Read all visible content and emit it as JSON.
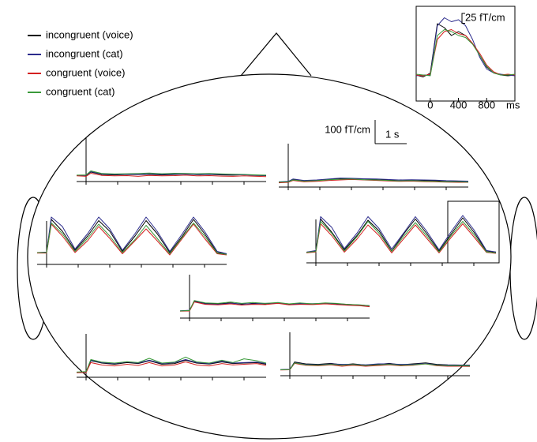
{
  "scale_bars": [
    {
      "value": 100,
      "label": "100 fT/cm"
    },
    {
      "value": 1,
      "label": "1 s"
    }
  ],
  "chart_data": [
    {
      "type": "line",
      "x": [
        -200,
        -100,
        0,
        100,
        200,
        300,
        400,
        500,
        600,
        700,
        800,
        900,
        1000,
        1100,
        1200
      ],
      "xlim": [
        -200,
        1200
      ],
      "xticks": [
        0,
        400,
        800
      ],
      "xlabel": "ms",
      "ylim": [
        0,
        200
      ],
      "scale_bar": {
        "value": 25,
        "label": "25 fT/cm"
      },
      "series": [
        {
          "name": "incongruent (voice)",
          "color": "#000000",
          "values": [
            50,
            45,
            55,
            180,
            170,
            150,
            160,
            150,
            130,
            100,
            70,
            55,
            50,
            48,
            50
          ]
        },
        {
          "name": "incongruent (cat)",
          "color": "#2b2b8c",
          "values": [
            48,
            50,
            50,
            175,
            195,
            185,
            190,
            175,
            140,
            95,
            65,
            55,
            52,
            50,
            48
          ]
        },
        {
          "name": "congruent (voice)",
          "color": "#d42020",
          "values": [
            50,
            48,
            52,
            140,
            160,
            165,
            155,
            150,
            130,
            105,
            75,
            58,
            50,
            52,
            50
          ]
        },
        {
          "name": "congruent (cat)",
          "color": "#3a9a3a",
          "values": [
            52,
            50,
            48,
            150,
            165,
            160,
            150,
            145,
            128,
            100,
            72,
            55,
            50,
            50,
            52
          ]
        }
      ]
    },
    {
      "type": "line",
      "x": [
        -0.3,
        0,
        0.15,
        0.5,
        0.9,
        1.3,
        1.65,
        2,
        2.4,
        2.8,
        3.15,
        3.5,
        3.9,
        4.3,
        4.65,
        5,
        5.4,
        5.7
      ],
      "xlim": [
        -0.3,
        5.7
      ],
      "xticks": [
        0,
        1,
        2,
        3,
        4,
        5
      ],
      "ylim": [
        0,
        250
      ],
      "series": [
        {
          "color": "#000000",
          "values": [
            25,
            26,
            40,
            30,
            28,
            30,
            29,
            31,
            28,
            30,
            32,
            29,
            30,
            28,
            27,
            29,
            26,
            25
          ]
        },
        {
          "color": "#2b2b8c",
          "values": [
            26,
            27,
            42,
            32,
            30,
            31,
            30,
            33,
            30,
            32,
            31,
            30,
            31,
            30,
            29,
            28,
            27,
            26
          ]
        },
        {
          "color": "#d42020",
          "values": [
            24,
            22,
            35,
            26,
            24,
            25,
            22,
            26,
            24,
            25,
            27,
            24,
            25,
            23,
            22,
            24,
            22,
            21
          ]
        },
        {
          "color": "#3a9a3a",
          "values": [
            27,
            28,
            45,
            34,
            32,
            33,
            34,
            36,
            33,
            35,
            34,
            33,
            34,
            32,
            31,
            30,
            28,
            27
          ]
        }
      ]
    },
    {
      "type": "line",
      "x": [
        -0.3,
        0,
        0.15,
        0.5,
        0.9,
        1.3,
        1.65,
        2,
        2.4,
        2.8,
        3.15,
        3.5,
        3.9,
        4.3,
        4.65,
        5,
        5.4,
        5.7
      ],
      "xlim": [
        -0.3,
        5.7
      ],
      "xticks": [
        0,
        1,
        2,
        3,
        4,
        5
      ],
      "ylim": [
        0,
        250
      ],
      "series": [
        {
          "color": "#000000",
          "values": [
            20,
            22,
            32,
            26,
            28,
            32,
            35,
            36,
            34,
            33,
            30,
            29,
            30,
            28,
            27,
            26,
            25,
            24
          ]
        },
        {
          "color": "#2b2b8c",
          "values": [
            22,
            24,
            34,
            28,
            30,
            34,
            38,
            37,
            35,
            34,
            32,
            30,
            31,
            30,
            29,
            27,
            26,
            25
          ]
        },
        {
          "color": "#d42020",
          "values": [
            18,
            20,
            28,
            22,
            24,
            28,
            30,
            32,
            30,
            28,
            26,
            24,
            25,
            23,
            22,
            21,
            20,
            20
          ]
        },
        {
          "color": "#3a9a3a",
          "values": [
            21,
            22,
            30,
            25,
            27,
            31,
            33,
            34,
            31,
            30,
            28,
            26,
            27,
            25,
            24,
            22,
            22,
            21
          ]
        }
      ]
    },
    {
      "type": "line",
      "x": [
        -0.3,
        0,
        0.15,
        0.5,
        0.9,
        1.3,
        1.65,
        2,
        2.4,
        2.8,
        3.15,
        3.5,
        3.9,
        4.3,
        4.65,
        5,
        5.4,
        5.7
      ],
      "xlim": [
        -0.3,
        5.7
      ],
      "xticks": [
        0,
        1,
        2,
        3,
        4,
        5
      ],
      "ylim": [
        0,
        250
      ],
      "series": [
        {
          "color": "#000000",
          "values": [
            50,
            50,
            190,
            140,
            60,
            120,
            185,
            140,
            55,
            120,
            185,
            130,
            50,
            120,
            190,
            130,
            50,
            45
          ]
        },
        {
          "color": "#2b2b8c",
          "values": [
            50,
            52,
            200,
            160,
            65,
            130,
            200,
            150,
            60,
            130,
            200,
            140,
            55,
            130,
            200,
            140,
            55,
            45
          ]
        },
        {
          "color": "#d42020",
          "values": [
            48,
            48,
            170,
            120,
            50,
            100,
            160,
            110,
            45,
            100,
            150,
            100,
            40,
            110,
            170,
            110,
            45,
            40
          ]
        },
        {
          "color": "#3a9a3a",
          "values": [
            50,
            50,
            175,
            130,
            55,
            110,
            170,
            120,
            50,
            105,
            165,
            110,
            45,
            115,
            175,
            120,
            48,
            42
          ]
        }
      ]
    },
    {
      "type": "line",
      "x": [
        -0.3,
        0,
        0.15,
        0.5,
        0.9,
        1.3,
        1.65,
        2,
        2.4,
        2.8,
        3.15,
        3.5,
        3.9,
        4.3,
        4.65,
        5,
        5.4,
        5.7
      ],
      "xlim": [
        -0.3,
        5.7
      ],
      "xticks": [
        0,
        1,
        2,
        3,
        4,
        5
      ],
      "ylim": [
        0,
        250
      ],
      "series": [
        {
          "color": "#000000",
          "values": [
            45,
            50,
            185,
            130,
            55,
            115,
            180,
            135,
            50,
            125,
            185,
            125,
            50,
            125,
            190,
            130,
            50,
            45
          ]
        },
        {
          "color": "#2b2b8c",
          "values": [
            45,
            52,
            195,
            150,
            60,
            125,
            195,
            145,
            58,
            130,
            195,
            135,
            55,
            135,
            200,
            140,
            52,
            46
          ]
        },
        {
          "color": "#d42020",
          "values": [
            42,
            46,
            165,
            115,
            45,
            100,
            160,
            115,
            42,
            105,
            160,
            105,
            42,
            110,
            165,
            110,
            44,
            40
          ]
        },
        {
          "color": "#3a9a3a",
          "values": [
            44,
            48,
            175,
            125,
            50,
            110,
            175,
            125,
            48,
            115,
            170,
            115,
            46,
            118,
            175,
            120,
            46,
            42
          ]
        }
      ]
    },
    {
      "type": "line",
      "x": [
        -0.3,
        0,
        0.15,
        0.5,
        0.9,
        1.3,
        1.65,
        2,
        2.4,
        2.8,
        3.15,
        3.5,
        3.9,
        4.3,
        4.65,
        5,
        5.4,
        5.7
      ],
      "xlim": [
        -0.3,
        5.7
      ],
      "xticks": [
        0,
        1,
        2,
        3,
        4,
        5
      ],
      "ylim": [
        0,
        250
      ],
      "series": [
        {
          "color": "#000000",
          "values": [
            30,
            32,
            72,
            62,
            60,
            64,
            58,
            62,
            60,
            65,
            58,
            62,
            59,
            63,
            60,
            58,
            55,
            52
          ]
        },
        {
          "color": "#2b2b8c",
          "values": [
            31,
            33,
            70,
            60,
            58,
            62,
            60,
            60,
            62,
            63,
            60,
            60,
            61,
            62,
            58,
            56,
            54,
            50
          ]
        },
        {
          "color": "#d42020",
          "values": [
            29,
            30,
            68,
            58,
            56,
            60,
            55,
            58,
            57,
            62,
            56,
            58,
            57,
            60,
            57,
            54,
            52,
            48
          ]
        },
        {
          "color": "#3a9a3a",
          "values": [
            30,
            32,
            74,
            64,
            62,
            68,
            62,
            66,
            62,
            66,
            60,
            64,
            60,
            64,
            62,
            58,
            56,
            52
          ]
        }
      ]
    },
    {
      "type": "line",
      "x": [
        -0.3,
        0,
        0.15,
        0.5,
        0.9,
        1.3,
        1.65,
        2,
        2.4,
        2.8,
        3.15,
        3.5,
        3.9,
        4.3,
        4.65,
        5,
        5.4,
        5.7
      ],
      "xlim": [
        -0.3,
        5.7
      ],
      "xticks": [
        0,
        1,
        2,
        3,
        4,
        5
      ],
      "ylim": [
        0,
        250
      ],
      "series": [
        {
          "color": "#000000",
          "values": [
            20,
            22,
            70,
            60,
            55,
            62,
            58,
            70,
            55,
            58,
            72,
            60,
            56,
            65,
            58,
            60,
            62,
            55
          ]
        },
        {
          "color": "#2b2b8c",
          "values": [
            21,
            23,
            72,
            62,
            58,
            65,
            60,
            72,
            58,
            62,
            75,
            62,
            58,
            68,
            60,
            62,
            64,
            58
          ]
        },
        {
          "color": "#d42020",
          "values": [
            19,
            20,
            62,
            52,
            48,
            55,
            50,
            62,
            48,
            52,
            65,
            52,
            48,
            58,
            52,
            55,
            58,
            50
          ]
        },
        {
          "color": "#3a9a3a",
          "values": [
            22,
            24,
            75,
            64,
            60,
            66,
            62,
            80,
            60,
            64,
            85,
            65,
            60,
            72,
            62,
            78,
            70,
            60
          ]
        }
      ]
    },
    {
      "type": "line",
      "x": [
        -0.3,
        0,
        0.15,
        0.5,
        0.9,
        1.3,
        1.65,
        2,
        2.4,
        2.8,
        3.15,
        3.5,
        3.9,
        4.3,
        4.65,
        5,
        5.4,
        5.7
      ],
      "xlim": [
        -0.3,
        5.7
      ],
      "xticks": [
        0,
        1,
        2,
        3,
        4,
        5
      ],
      "ylim": [
        0,
        250
      ],
      "series": [
        {
          "color": "#000000",
          "values": [
            25,
            26,
            58,
            50,
            48,
            52,
            46,
            50,
            45,
            48,
            52,
            46,
            50,
            54,
            48,
            46,
            45,
            44
          ]
        },
        {
          "color": "#2b2b8c",
          "values": [
            26,
            27,
            55,
            48,
            46,
            50,
            48,
            48,
            46,
            50,
            50,
            48,
            48,
            52,
            46,
            45,
            44,
            43
          ]
        },
        {
          "color": "#d42020",
          "values": [
            24,
            25,
            52,
            44,
            42,
            46,
            40,
            44,
            40,
            43,
            46,
            42,
            44,
            50,
            42,
            40,
            40,
            39
          ]
        },
        {
          "color": "#3a9a3a",
          "values": [
            25,
            26,
            54,
            46,
            44,
            48,
            44,
            47,
            43,
            46,
            48,
            44,
            46,
            50,
            44,
            42,
            42,
            41
          ]
        }
      ]
    }
  ]
}
